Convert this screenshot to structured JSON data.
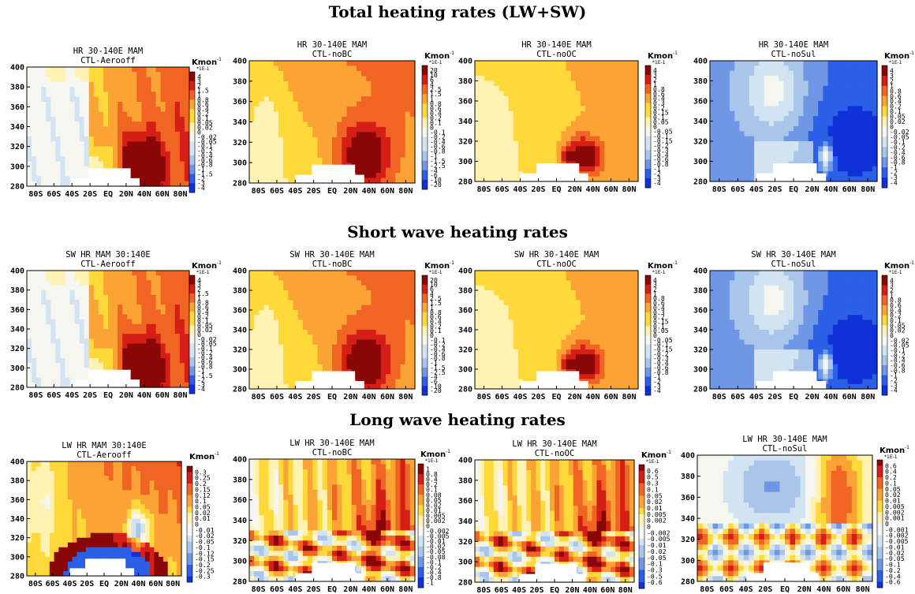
{
  "row_titles": [
    "Total heating rates (LW+SW)",
    "Short wave heating rates",
    "Long wave heating rates"
  ],
  "colors": {
    "dark_blue": "#1030d8",
    "blue": "#2a5fe6",
    "mid_blue": "#6f97e6",
    "light_blue": "#a9c6ea",
    "pale_blue": "#d2e3f2",
    "near_white": "#f6f6f0",
    "pale_yellow": "#fff2b2",
    "yellow": "#ffd83a",
    "orange": "#fba335",
    "dark_orange": "#f06424",
    "red": "#d51e16",
    "dark_red": "#8a0707",
    "mask": "#ffffff"
  },
  "chart_data": [
    {
      "type": "heatmap",
      "row": 0,
      "col": 0,
      "title": "HR 30-140E MAM",
      "subtitle": "CTL-Aerooff",
      "unit": "Kmon",
      "unit_sup": "-1",
      "unit_sub": "*1E-1",
      "xticks": [
        "80S",
        "60S",
        "40S",
        "20S",
        "EQ",
        "20N",
        "40N",
        "60N",
        "80N"
      ],
      "yticks": [
        "400",
        "380",
        "360",
        "340",
        "320",
        "300",
        "280"
      ],
      "ylim": [
        280,
        400
      ],
      "levels": [
        "4",
        "3",
        "2",
        "1.5",
        "1",
        "0.8",
        "0.6",
        "0.4",
        "0.2",
        "0.1",
        "0.05",
        "0.02",
        "0",
        "-0.02",
        "-0.05",
        "-0.1",
        "-0.2",
        "-0.4",
        "-0.6",
        "-0.8",
        "-1",
        "-1.5",
        "-2",
        "-3",
        "-4"
      ],
      "pattern": "aerooff"
    },
    {
      "type": "heatmap",
      "row": 0,
      "col": 1,
      "title": "HR 30-140E MAM",
      "subtitle": "CTL-noBC",
      "unit": "Kmon",
      "unit_sup": "-1",
      "unit_sub": "*1E-1",
      "xticks": [
        "80S",
        "60S",
        "40S",
        "20S",
        "EQ",
        "20N",
        "40N",
        "60N",
        "80N"
      ],
      "yticks": [
        "400",
        "380",
        "360",
        "340",
        "320",
        "300",
        "280"
      ],
      "ylim": [
        280,
        400
      ],
      "levels": [
        "20",
        "10",
        "6",
        "4",
        "2.5",
        "1.5",
        "1",
        "0.8",
        "0.6",
        "0.4",
        "0.2",
        "0.1",
        "0",
        "-0.1",
        "-0.2",
        "-0.4",
        "-0.6",
        "-0.8",
        "-1",
        "-1.5",
        "-2.5",
        "-4",
        "-6",
        "-10",
        "-20"
      ],
      "pattern": "nobc"
    },
    {
      "type": "heatmap",
      "row": 0,
      "col": 2,
      "title": "HR 30-140E MAM",
      "subtitle": "CTL-noOC",
      "unit": "Kmon",
      "unit_sup": "-1",
      "unit_sub": "*1E-1",
      "xticks": [
        "80S",
        "60S",
        "40S",
        "20S",
        "EQ",
        "20N",
        "40N",
        "60N",
        "80N"
      ],
      "yticks": [
        "400",
        "380",
        "360",
        "340",
        "320",
        "300",
        "280"
      ],
      "ylim": [
        280,
        400
      ],
      "levels": [
        "4",
        "3",
        "2",
        "1",
        "0.8",
        "0.6",
        "0.4",
        "0.3",
        "0.2",
        "0.15",
        "0.1",
        "0.05",
        "0",
        "-0.05",
        "-0.1",
        "-0.15",
        "-0.2",
        "-0.3",
        "-0.4",
        "-0.6",
        "-0.8",
        "-1",
        "-2",
        "-3",
        "-4"
      ],
      "pattern": "nooc"
    },
    {
      "type": "heatmap",
      "row": 0,
      "col": 3,
      "title": "HR 30-140E MAM",
      "subtitle": "CTL-noSul",
      "unit": "Kmon",
      "unit_sup": "-1",
      "unit_sub": "*1E-1",
      "xticks": [
        "80S",
        "60S",
        "40S",
        "20S",
        "EQ",
        "20N",
        "40N",
        "60N",
        "80N"
      ],
      "yticks": [
        "400",
        "380",
        "360",
        "340",
        "320",
        "300",
        "280"
      ],
      "ylim": [
        280,
        400
      ],
      "levels": [
        "4",
        "3",
        "2",
        "1",
        "0.8",
        "0.6",
        "0.4",
        "0.2",
        "0.1",
        "0.05",
        "0.02",
        "0",
        "-0.02",
        "-0.05",
        "-0.1",
        "-0.2",
        "-0.4",
        "-0.6",
        "-0.8",
        "-1",
        "-2",
        "-3",
        "-4"
      ],
      "pattern": "nosul"
    },
    {
      "type": "heatmap",
      "row": 1,
      "col": 0,
      "title": "SW HR MAM 30:140E",
      "subtitle": "CTL-Aerooff",
      "unit": "Kmon",
      "unit_sup": "-1",
      "unit_sub": "*1E-1",
      "xticks": [
        "80S",
        "60S",
        "40S",
        "20S",
        "EQ",
        "20N",
        "40N",
        "60N",
        "80N"
      ],
      "yticks": [
        "400",
        "380",
        "360",
        "340",
        "320",
        "300",
        "280"
      ],
      "ylim": [
        280,
        400
      ],
      "levels": [
        "4",
        "3",
        "2",
        "1.5",
        "1",
        "0.8",
        "0.6",
        "0.4",
        "0.2",
        "0.1",
        "0.05",
        "0.02",
        "0",
        "-0.02",
        "-0.05",
        "-0.1",
        "-0.2",
        "-0.4",
        "-0.6",
        "-0.8",
        "-1",
        "-1.5",
        "-2",
        "-3",
        "-4"
      ],
      "pattern": "aerooff"
    },
    {
      "type": "heatmap",
      "row": 1,
      "col": 1,
      "title": "SW HR 30-140E MAM",
      "subtitle": "CTL-noBC",
      "unit": "Kmon",
      "unit_sup": "-1",
      "unit_sub": "*1E-1",
      "xticks": [
        "80S",
        "60S",
        "40S",
        "20S",
        "EQ",
        "20N",
        "40N",
        "60N",
        "80N"
      ],
      "yticks": [
        "400",
        "380",
        "360",
        "340",
        "320",
        "300",
        "280"
      ],
      "ylim": [
        280,
        400
      ],
      "levels": [
        "20",
        "10",
        "6",
        "4",
        "2.5",
        "1.5",
        "1",
        "0.8",
        "0.6",
        "0.4",
        "0.2",
        "0.1",
        "0",
        "-0.1",
        "-0.2",
        "-0.4",
        "-0.6",
        "-0.8",
        "-1",
        "-1.5",
        "-2.5",
        "-4",
        "-6",
        "-10",
        "-20"
      ],
      "pattern": "nobc"
    },
    {
      "type": "heatmap",
      "row": 1,
      "col": 2,
      "title": "SW HR 30-140E MAM",
      "subtitle": "CTL-noOC",
      "unit": "Kmon",
      "unit_sup": "-1",
      "unit_sub": "*1E-1",
      "xticks": [
        "80S",
        "60S",
        "40S",
        "20S",
        "EQ",
        "20N",
        "40N",
        "60N",
        "80N"
      ],
      "yticks": [
        "400",
        "380",
        "360",
        "340",
        "320",
        "300",
        "280"
      ],
      "ylim": [
        280,
        400
      ],
      "levels": [
        "4",
        "3",
        "2",
        "1",
        "0.8",
        "0.6",
        "0.4",
        "0.3",
        "0.2",
        "0.15",
        "0.1",
        "0.05",
        "0",
        "-0.05",
        "-0.1",
        "-0.15",
        "-0.2",
        "-0.3",
        "-0.4",
        "-0.6",
        "-0.8",
        "-1",
        "-2",
        "-3",
        "-4"
      ],
      "pattern": "nooc"
    },
    {
      "type": "heatmap",
      "row": 1,
      "col": 3,
      "title": "SW HR 30-140E MAM",
      "subtitle": "CTL-noSul",
      "unit": "Kmon",
      "unit_sup": "-1",
      "unit_sub": "*1E-1",
      "xticks": [
        "80S",
        "60S",
        "40S",
        "20S",
        "EQ",
        "20N",
        "40N",
        "60N",
        "80N"
      ],
      "yticks": [
        "400",
        "380",
        "360",
        "340",
        "320",
        "300",
        "280"
      ],
      "ylim": [
        280,
        400
      ],
      "levels": [
        "4",
        "3",
        "2",
        "1",
        "0.8",
        "0.6",
        "0.4",
        "0.2",
        "0.1",
        "0.05",
        "0.02",
        "0",
        "-0.02",
        "-0.05",
        "-0.1",
        "-0.2",
        "-0.4",
        "-0.6",
        "-0.8",
        "-1",
        "-2",
        "-3",
        "-4"
      ],
      "pattern": "nosul"
    },
    {
      "type": "heatmap",
      "row": 2,
      "col": 0,
      "title": "LW HR MAM 30:140E",
      "subtitle": "CTL-Aerooff",
      "unit": "Kmon",
      "unit_sup": "-1",
      "unit_sub": "",
      "xticks": [
        "80S",
        "60S",
        "40S",
        "20S",
        "EQ",
        "20N",
        "40N",
        "60N",
        "80N"
      ],
      "yticks": [
        "400",
        "380",
        "360",
        "340",
        "320",
        "300",
        "280"
      ],
      "ylim": [
        280,
        400
      ],
      "levels": [
        "0.3",
        "0.25",
        "0.2",
        "0.15",
        "0.12",
        "0.1",
        "0.05",
        "0.02",
        "0.01",
        "0",
        "-0.01",
        "-0.02",
        "-0.05",
        "-0.1",
        "-0.12",
        "-0.15",
        "-0.2",
        "-0.25",
        "-0.3"
      ],
      "pattern": "lw_aerooff"
    },
    {
      "type": "heatmap",
      "row": 2,
      "col": 1,
      "title": "LW HR 30-140E MAM",
      "subtitle": "CTL-noBC",
      "unit": "Kmon",
      "unit_sup": "-1",
      "unit_sub": "*1E-1",
      "xticks": [
        "80S",
        "60S",
        "40S",
        "20S",
        "EQ",
        "20N",
        "40N",
        "60N",
        "80N"
      ],
      "yticks": [
        "400",
        "380",
        "360",
        "340",
        "320",
        "300",
        "280"
      ],
      "ylim": [
        280,
        400
      ],
      "levels": [
        "1",
        "0.8",
        "0.4",
        "0.2",
        "0.1",
        "0.08",
        "0.05",
        "0.02",
        "0.01",
        "0.005",
        "0.002",
        "0",
        "-0.002",
        "-0.005",
        "-0.01",
        "-0.02",
        "-0.05",
        "-0.08",
        "-0.1",
        "-0.2",
        "-0.4",
        "-0.8",
        "-1"
      ],
      "pattern": "lw_mixed"
    },
    {
      "type": "heatmap",
      "row": 2,
      "col": 2,
      "title": "LW HR 30-140E MAM",
      "subtitle": "CTL-noOC",
      "unit": "Kmon",
      "unit_sup": "-1",
      "unit_sub": "*1E-1",
      "xticks": [
        "80S",
        "60S",
        "40S",
        "20S",
        "EQ",
        "20N",
        "40N",
        "60N",
        "80N"
      ],
      "yticks": [
        "400",
        "380",
        "360",
        "340",
        "320",
        "300",
        "280"
      ],
      "ylim": [
        280,
        400
      ],
      "levels": [
        "0.6",
        "0.5",
        "0.3",
        "0.1",
        "0.05",
        "0.02",
        "0.01",
        "0.005",
        "0.002",
        "0",
        "-0.002",
        "-0.005",
        "-0.01",
        "-0.02",
        "-0.05",
        "-0.1",
        "-0.3",
        "-0.5",
        "-0.6"
      ],
      "pattern": "lw_mixed"
    },
    {
      "type": "heatmap",
      "row": 2,
      "col": 3,
      "title": "LW HR 30-140E MAM",
      "subtitle": "CTL-noSul",
      "unit": "Kmon",
      "unit_sup": "-1",
      "unit_sub": "*1E-1",
      "xticks": [
        "80S",
        "60S",
        "40S",
        "20S",
        "EQ",
        "20N",
        "40N",
        "60N",
        "80N"
      ],
      "yticks": [
        "400",
        "380",
        "360",
        "340",
        "320",
        "300",
        "280"
      ],
      "ylim": [
        280,
        400
      ],
      "levels": [
        "0.6",
        "0.4",
        "0.2",
        "0.1",
        "0.05",
        "0.02",
        "0.01",
        "0.005",
        "0.002",
        "0.001",
        "0",
        "-0.001",
        "-0.002",
        "-0.005",
        "-0.01",
        "-0.02",
        "-0.05",
        "-0.1",
        "-0.2",
        "-0.4",
        "-0.6"
      ],
      "pattern": "lw_nosul"
    }
  ]
}
